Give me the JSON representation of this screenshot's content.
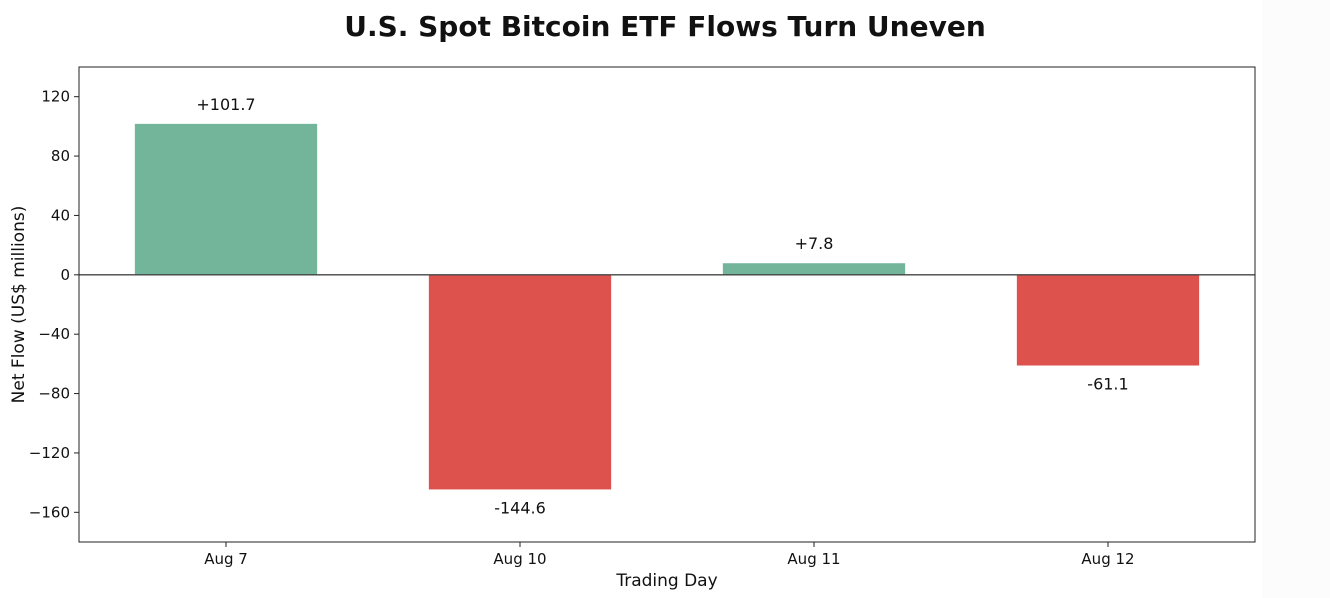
{
  "chart_data": {
    "type": "bar",
    "title": "U.S. Spot Bitcoin ETF Flows Turn Uneven",
    "xlabel": "Trading Day",
    "ylabel": "Net Flow (US$ millions)",
    "categories": [
      "Aug 7",
      "Aug 10",
      "Aug 11",
      "Aug 12"
    ],
    "values": [
      101.7,
      -144.6,
      7.8,
      -61.1
    ],
    "value_labels": [
      "+101.7",
      "-144.6",
      "+7.8",
      "-61.1"
    ],
    "ylim": [
      -180,
      140
    ],
    "yticks": [
      120,
      80,
      40,
      0,
      -40,
      -80,
      -120,
      -160
    ],
    "ytick_labels": [
      "120",
      "80",
      "40",
      "0",
      "−40",
      "−80",
      "−120",
      "−160"
    ],
    "grid": false,
    "legend": "none",
    "colors": {
      "positive": "#72b59a",
      "negative": "#dd524c",
      "zero_line": "#444444",
      "frame": "#222222"
    }
  }
}
